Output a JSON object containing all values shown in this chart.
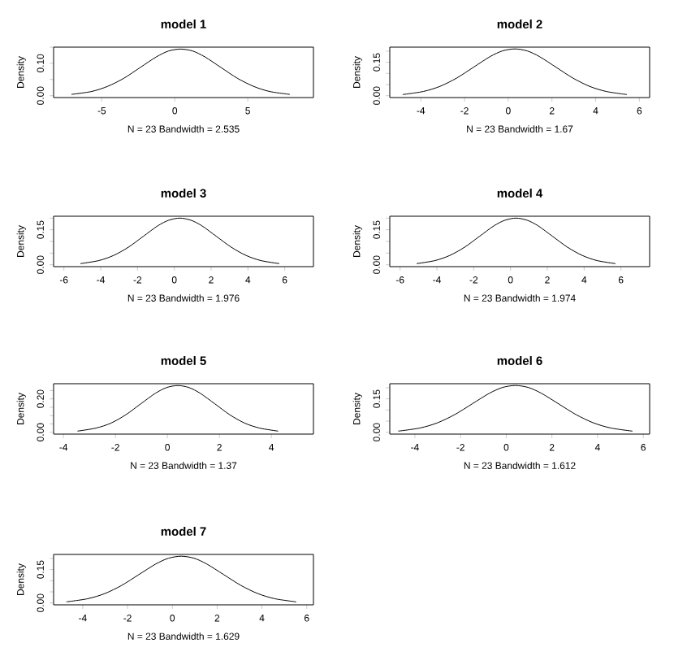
{
  "chart_data": [
    {
      "type": "line",
      "title": "model 1",
      "xlabel": "N = 23   Bandwidth = 2.535",
      "ylabel": "Density",
      "color": "#000000",
      "xlim": [
        -8.3,
        9.5
      ],
      "ylim": [
        -0.0058,
        0.15
      ],
      "xticks": [
        -5,
        0,
        5
      ],
      "yticks": [
        {
          "value": 0,
          "label": "0.00"
        },
        {
          "value": 0.05,
          "label": null
        },
        {
          "value": 0.1,
          "label": "0.10"
        },
        {
          "value": 0.15,
          "label": null
        }
      ],
      "x": [
        -7.08,
        -5.69,
        -4.59,
        -3.48,
        -2.37,
        -1.26,
        -0.43,
        0.4,
        1.23,
        2.06,
        3.17,
        4.28,
        5.39,
        6.49,
        7.88
      ],
      "values": [
        0.004,
        0.013,
        0.029,
        0.054,
        0.087,
        0.12,
        0.138,
        0.144,
        0.138,
        0.12,
        0.087,
        0.054,
        0.029,
        0.013,
        0.004
      ]
    },
    {
      "type": "line",
      "title": "model 2",
      "xlabel": "N = 23   Bandwidth = 1.67",
      "ylabel": "Density",
      "color": "#000000",
      "xlim": [
        -5.42,
        6.47
      ],
      "ylim": [
        -0.0084,
        0.218
      ],
      "xticks": [
        -4,
        -2,
        0,
        2,
        4,
        6
      ],
      "yticks": [
        {
          "value": 0,
          "label": "0.00"
        },
        {
          "value": 0.05,
          "label": null
        },
        {
          "value": 0.1,
          "label": null
        },
        {
          "value": 0.15,
          "label": "0.15"
        },
        {
          "value": 0.2,
          "label": null
        }
      ],
      "x": [
        -4.83,
        -3.88,
        -3.12,
        -2.36,
        -1.6,
        -0.84,
        -0.27,
        0.3,
        0.87,
        1.44,
        2.2,
        2.96,
        3.72,
        4.48,
        5.43
      ],
      "values": [
        0.005,
        0.019,
        0.042,
        0.079,
        0.127,
        0.175,
        0.201,
        0.21,
        0.201,
        0.175,
        0.127,
        0.079,
        0.042,
        0.019,
        0.005
      ]
    },
    {
      "type": "line",
      "title": "model 3",
      "xlabel": "N = 23   Bandwidth = 1.976",
      "ylabel": "Density",
      "color": "#000000",
      "xlim": [
        -6.56,
        7.56
      ],
      "ylim": [
        -0.008,
        0.208
      ],
      "xticks": [
        -6,
        -4,
        -2,
        0,
        2,
        4,
        6
      ],
      "yticks": [
        {
          "value": 0,
          "label": "0.00"
        },
        {
          "value": 0.05,
          "label": null
        },
        {
          "value": 0.1,
          "label": null
        },
        {
          "value": 0.15,
          "label": "0.15"
        },
        {
          "value": 0.2,
          "label": null
        }
      ],
      "x": [
        -5.1,
        -4.1,
        -3.3,
        -2.5,
        -1.7,
        -0.9,
        -0.3,
        0.3,
        0.9,
        1.5,
        2.3,
        3.1,
        3.9,
        4.7,
        5.7
      ],
      "values": [
        0.005,
        0.018,
        0.04,
        0.075,
        0.121,
        0.167,
        0.191,
        0.2,
        0.191,
        0.167,
        0.121,
        0.075,
        0.04,
        0.018,
        0.005
      ]
    },
    {
      "type": "line",
      "title": "model 4",
      "xlabel": "N = 23   Bandwidth = 1.974",
      "ylabel": "Density",
      "color": "#000000",
      "xlim": [
        -6.56,
        7.56
      ],
      "ylim": [
        -0.008,
        0.208
      ],
      "xticks": [
        -6,
        -4,
        -2,
        0,
        2,
        4,
        6
      ],
      "yticks": [
        {
          "value": 0,
          "label": "0.00"
        },
        {
          "value": 0.05,
          "label": null
        },
        {
          "value": 0.1,
          "label": null
        },
        {
          "value": 0.15,
          "label": "0.15"
        },
        {
          "value": 0.2,
          "label": null
        }
      ],
      "x": [
        -5.1,
        -4.1,
        -3.3,
        -2.5,
        -1.7,
        -0.9,
        -0.3,
        0.3,
        0.9,
        1.5,
        2.3,
        3.1,
        3.9,
        4.7,
        5.7
      ],
      "values": [
        0.005,
        0.018,
        0.04,
        0.075,
        0.121,
        0.167,
        0.191,
        0.2,
        0.191,
        0.167,
        0.121,
        0.075,
        0.04,
        0.018,
        0.005
      ]
    },
    {
      "type": "line",
      "title": "model 5",
      "xlabel": "N = 23   Bandwidth = 1.37",
      "ylabel": "Density",
      "color": "#000000",
      "xlim": [
        -4.38,
        5.62
      ],
      "ylim": [
        -0.011,
        0.291
      ],
      "xticks": [
        -4,
        -2,
        0,
        2,
        4
      ],
      "yticks": [
        {
          "value": 0,
          "label": "0.00"
        },
        {
          "value": 0.05,
          "label": null
        },
        {
          "value": 0.1,
          "label": null
        },
        {
          "value": 0.15,
          "label": null
        },
        {
          "value": 0.2,
          "label": "0.20"
        },
        {
          "value": 0.25,
          "label": null
        }
      ],
      "x": [
        -3.46,
        -2.75,
        -2.17,
        -1.6,
        -1.03,
        -0.46,
        -0.03,
        0.4,
        0.83,
        1.26,
        1.83,
        2.4,
        2.97,
        3.55,
        4.26
      ],
      "values": [
        0.007,
        0.025,
        0.055,
        0.105,
        0.17,
        0.234,
        0.268,
        0.28,
        0.268,
        0.234,
        0.17,
        0.105,
        0.055,
        0.025,
        0.007
      ]
    },
    {
      "type": "line",
      "title": "model 6",
      "xlabel": "N = 23   Bandwidth = 1.612",
      "ylabel": "Density",
      "color": "#000000",
      "xlim": [
        -5.1,
        6.28
      ],
      "ylim": [
        -0.0084,
        0.218
      ],
      "xticks": [
        -4,
        -2,
        0,
        2,
        4,
        6
      ],
      "yticks": [
        {
          "value": 0,
          "label": "0.00"
        },
        {
          "value": 0.05,
          "label": null
        },
        {
          "value": 0.1,
          "label": null
        },
        {
          "value": 0.15,
          "label": "0.15"
        },
        {
          "value": 0.2,
          "label": null
        }
      ],
      "x": [
        -4.73,
        -3.78,
        -3.02,
        -2.26,
        -1.5,
        -0.74,
        -0.17,
        0.4,
        0.97,
        1.54,
        2.3,
        3.06,
        3.82,
        4.58,
        5.53
      ],
      "values": [
        0.005,
        0.019,
        0.042,
        0.079,
        0.127,
        0.175,
        0.201,
        0.21,
        0.201,
        0.175,
        0.127,
        0.079,
        0.042,
        0.019,
        0.005
      ]
    },
    {
      "type": "line",
      "title": "model 7",
      "xlabel": "N = 23   Bandwidth = 1.629",
      "ylabel": "Density",
      "color": "#000000",
      "xlim": [
        -5.3,
        6.3
      ],
      "ylim": [
        -0.0084,
        0.218
      ],
      "xticks": [
        -4,
        -2,
        0,
        2,
        4,
        6
      ],
      "yticks": [
        {
          "value": 0,
          "label": "0.00"
        },
        {
          "value": 0.05,
          "label": null
        },
        {
          "value": 0.1,
          "label": null
        },
        {
          "value": 0.15,
          "label": "0.15"
        },
        {
          "value": 0.2,
          "label": null
        }
      ],
      "x": [
        -4.73,
        -3.78,
        -3.02,
        -2.26,
        -1.5,
        -0.74,
        -0.17,
        0.4,
        0.97,
        1.54,
        2.3,
        3.06,
        3.82,
        4.58,
        5.53
      ],
      "values": [
        0.005,
        0.019,
        0.042,
        0.079,
        0.127,
        0.175,
        0.201,
        0.21,
        0.201,
        0.175,
        0.127,
        0.079,
        0.042,
        0.019,
        0.005
      ]
    }
  ]
}
